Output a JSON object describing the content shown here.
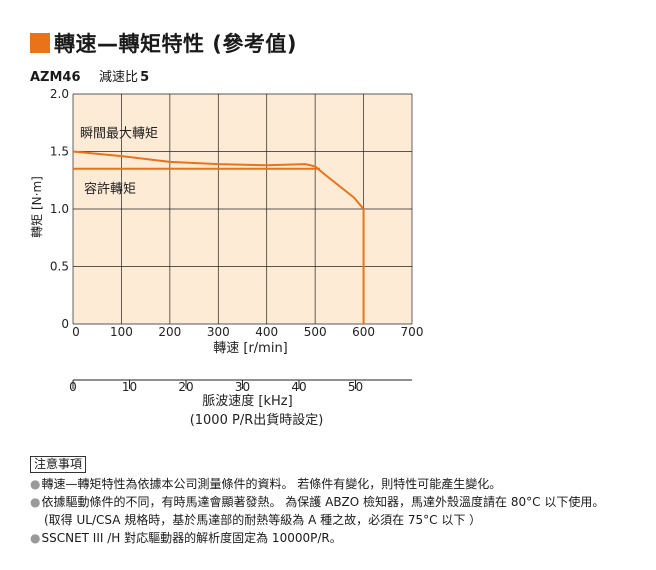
{
  "header": {
    "title": "轉速—轉矩特性 (參考值)",
    "accent_color": "#e8731a",
    "model": "AZM46",
    "ratio_label": "減速比",
    "ratio_value": "5"
  },
  "chart_data": {
    "type": "line",
    "xlabel": "轉速 [r/min]",
    "ylabel": "轉矩 [N·m]",
    "xlim": [
      0,
      700
    ],
    "ylim": [
      0,
      2.0
    ],
    "x_ticks": [
      "0",
      "100",
      "200",
      "300",
      "400",
      "500",
      "600",
      "700"
    ],
    "y_ticks": [
      "0",
      "0.5",
      "1.0",
      "1.5",
      "2.0"
    ],
    "grid": true,
    "background_color": "#fdebd6",
    "line_color": "#e8731a",
    "series": [
      {
        "name": "瞬間最大轉矩",
        "x": [
          0,
          100,
          200,
          300,
          400,
          480,
          500,
          520,
          550,
          580,
          600
        ],
        "y": [
          1.5,
          1.46,
          1.41,
          1.39,
          1.38,
          1.39,
          1.37,
          1.3,
          1.2,
          1.1,
          1.0
        ]
      },
      {
        "name": "容許轉矩",
        "x": [
          0,
          100,
          200,
          300,
          400,
          510
        ],
        "y": [
          1.35,
          1.35,
          1.35,
          1.35,
          1.35,
          1.35
        ]
      }
    ],
    "drop_line": {
      "x": 600,
      "y_from": 1.0,
      "y_to": 0
    },
    "secondary_axis": {
      "label": "脈波速度 [kHz]",
      "note": "(1000 P/R出貨時設定)",
      "ticks": [
        "0",
        "10",
        "20",
        "30",
        "40",
        "50"
      ],
      "range": [
        0,
        60
      ]
    }
  },
  "notes": {
    "heading": "注意事項",
    "items": [
      "轉速—轉矩特性為依據本公司測量條件的資料。 若條件有變化，則特性可能產生變化。",
      "依據驅動條件的不同，有時馬達會顯著發熱。 為保護 ABZO 檢知器，馬達外殼溫度請在 80°C 以下使用。",
      "(取得 UL/CSA 規格時，基於馬達部的耐熱等級為 A 種之故，必須在 75°C 以下 ）",
      "SSCNET III /H 對応驅動器的解析度固定為 10000P/R。"
    ]
  }
}
